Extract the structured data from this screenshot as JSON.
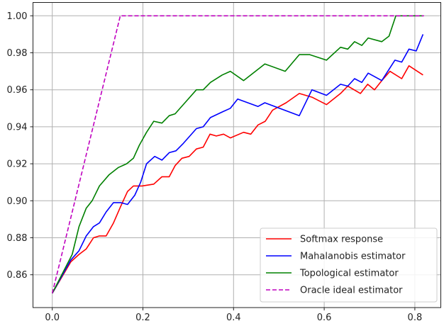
{
  "chart_data": {
    "type": "line",
    "title": "",
    "xlabel": "",
    "ylabel": "",
    "xlim": [
      -0.042,
      0.863
    ],
    "ylim": [
      0.8425,
      1.0073
    ],
    "xticks": [
      "0.0",
      "0.2",
      "0.4",
      "0.6",
      "0.8"
    ],
    "xtick_values": [
      0.0,
      0.2,
      0.4,
      0.6,
      0.8
    ],
    "yticks": [
      "0.86",
      "0.88",
      "0.90",
      "0.92",
      "0.94",
      "0.96",
      "0.98",
      "1.00"
    ],
    "ytick_values": [
      0.86,
      0.88,
      0.9,
      0.92,
      0.94,
      0.96,
      0.98,
      1.0
    ],
    "grid": true,
    "legend_position": "bottom-right",
    "series": [
      {
        "name": "Softmax response",
        "color": "#ff0000",
        "style": "solid",
        "x": [
          0,
          0.041,
          0.059,
          0.075,
          0.091,
          0.104,
          0.119,
          0.135,
          0.151,
          0.166,
          0.179,
          0.198,
          0.224,
          0.242,
          0.258,
          0.271,
          0.286,
          0.302,
          0.318,
          0.333,
          0.348,
          0.362,
          0.378,
          0.393,
          0.422,
          0.438,
          0.454,
          0.47,
          0.486,
          0.516,
          0.545,
          0.573,
          0.605,
          0.636,
          0.652,
          0.68,
          0.696,
          0.711,
          0.727,
          0.745,
          0.771,
          0.787,
          0.818
        ],
        "y": [
          0.85,
          0.867,
          0.871,
          0.874,
          0.88,
          0.881,
          0.881,
          0.888,
          0.897,
          0.905,
          0.908,
          0.908,
          0.909,
          0.913,
          0.913,
          0.919,
          0.923,
          0.924,
          0.928,
          0.929,
          0.936,
          0.935,
          0.936,
          0.934,
          0.937,
          0.936,
          0.941,
          0.943,
          0.949,
          0.953,
          0.958,
          0.956,
          0.952,
          0.958,
          0.962,
          0.958,
          0.963,
          0.96,
          0.965,
          0.97,
          0.966,
          0.973,
          0.968
        ]
      },
      {
        "name": "Mahalanobis estimator",
        "color": "#0000ff",
        "style": "solid",
        "x": [
          0,
          0.041,
          0.059,
          0.075,
          0.091,
          0.104,
          0.119,
          0.135,
          0.151,
          0.166,
          0.182,
          0.195,
          0.208,
          0.226,
          0.242,
          0.258,
          0.273,
          0.289,
          0.318,
          0.333,
          0.349,
          0.375,
          0.393,
          0.409,
          0.454,
          0.469,
          0.545,
          0.573,
          0.605,
          0.636,
          0.652,
          0.667,
          0.683,
          0.697,
          0.727,
          0.756,
          0.771,
          0.787,
          0.803,
          0.818
        ],
        "y": [
          0.85,
          0.868,
          0.873,
          0.881,
          0.886,
          0.888,
          0.894,
          0.899,
          0.899,
          0.898,
          0.903,
          0.91,
          0.92,
          0.924,
          0.922,
          0.926,
          0.927,
          0.931,
          0.939,
          0.94,
          0.945,
          0.948,
          0.95,
          0.955,
          0.951,
          0.953,
          0.946,
          0.96,
          0.957,
          0.963,
          0.962,
          0.966,
          0.964,
          0.969,
          0.965,
          0.976,
          0.975,
          0.982,
          0.981,
          0.99
        ]
      },
      {
        "name": "Topological estimator",
        "color": "#008000",
        "style": "solid",
        "x": [
          0,
          0.044,
          0.059,
          0.075,
          0.088,
          0.104,
          0.125,
          0.146,
          0.164,
          0.179,
          0.192,
          0.208,
          0.224,
          0.242,
          0.258,
          0.271,
          0.289,
          0.318,
          0.333,
          0.349,
          0.375,
          0.393,
          0.422,
          0.469,
          0.514,
          0.545,
          0.568,
          0.605,
          0.636,
          0.652,
          0.667,
          0.683,
          0.697,
          0.727,
          0.743,
          0.758,
          0.818
        ],
        "y": [
          0.85,
          0.871,
          0.886,
          0.896,
          0.9,
          0.908,
          0.914,
          0.918,
          0.92,
          0.923,
          0.93,
          0.937,
          0.943,
          0.942,
          0.946,
          0.947,
          0.952,
          0.96,
          0.96,
          0.964,
          0.968,
          0.97,
          0.965,
          0.974,
          0.97,
          0.979,
          0.979,
          0.976,
          0.983,
          0.982,
          0.986,
          0.984,
          0.988,
          0.986,
          0.989,
          1.0,
          1.0
        ]
      },
      {
        "name": "Oracle ideal estimator",
        "color": "#bf00bf",
        "style": "dashed",
        "x": [
          0,
          0.15,
          0.82
        ],
        "y": [
          0.85,
          1.0,
          1.0
        ]
      }
    ]
  }
}
